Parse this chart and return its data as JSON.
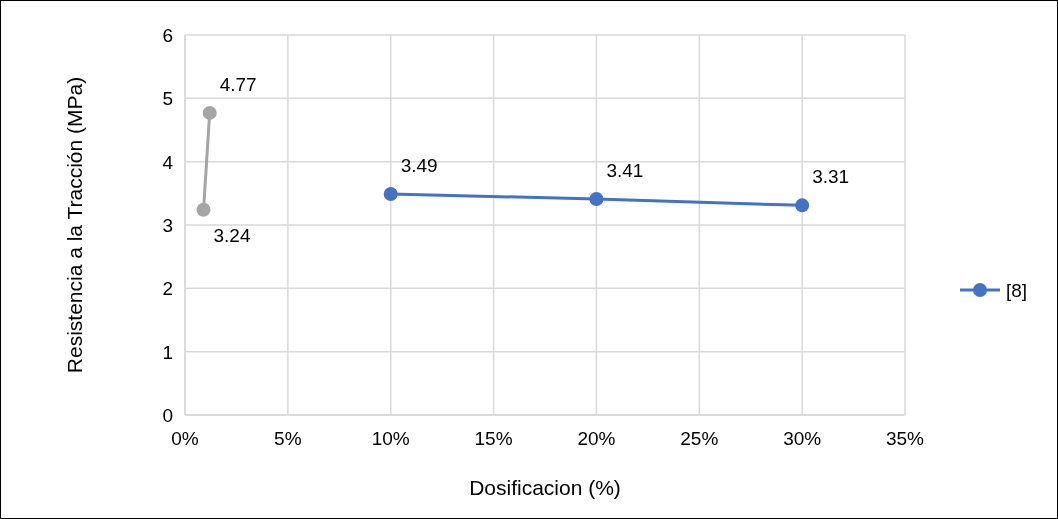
{
  "chart_data": {
    "type": "line",
    "xlabel": "Dosificacion (%)",
    "ylabel": "Resistencia a la Tracción (MPa)",
    "series": [
      {
        "color": "#a5a5a5",
        "x": [
          0.9,
          1.2
        ],
        "values": [
          3.24,
          4.77
        ]
      },
      {
        "name": "[8]",
        "color": "#4472c4",
        "x": [
          10,
          20,
          30
        ],
        "values": [
          3.49,
          3.41,
          3.31
        ]
      }
    ],
    "xlim": [
      0,
      35
    ],
    "xticks": [
      {
        "value": 0,
        "label": "0%"
      },
      {
        "value": 5,
        "label": "5%"
      },
      {
        "value": 10,
        "label": "10%"
      },
      {
        "value": 15,
        "label": "15%"
      },
      {
        "value": 20,
        "label": "20%"
      },
      {
        "value": 25,
        "label": "25%"
      },
      {
        "value": 30,
        "label": "30%"
      },
      {
        "value": 35,
        "label": "35%"
      }
    ],
    "ylim": [
      0,
      6
    ],
    "yticks": [
      0,
      1,
      2,
      3,
      4,
      5,
      6
    ],
    "grid": true,
    "legend": "right",
    "marker": "circle",
    "line_style": "solid",
    "data_labels": true
  }
}
